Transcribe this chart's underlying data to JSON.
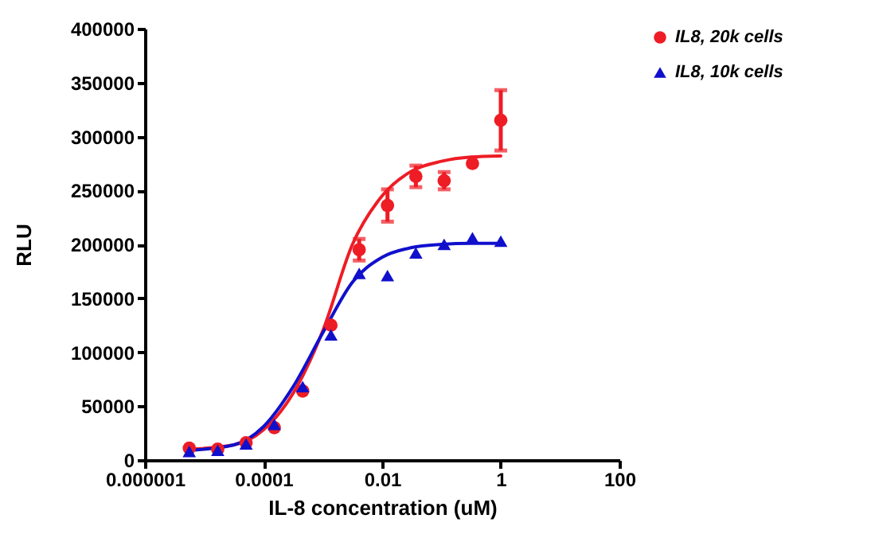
{
  "chart_data": {
    "type": "scatter",
    "xlabel": "IL-8 concentration (uM)",
    "ylabel": "RLU",
    "log": "x",
    "grid": false,
    "legend": "right",
    "xlim": [
      1e-06,
      100
    ],
    "xticks": [
      {
        "value": 1e-06,
        "label": "0.000001"
      },
      0.0001,
      0.01,
      1,
      100
    ],
    "ylim": [
      0,
      400000
    ],
    "yticks": [
      0,
      50000,
      100000,
      150000,
      200000,
      250000,
      300000,
      350000,
      400000
    ],
    "x": [
      5.6e-06,
      1.69e-05,
      5.08e-05,
      0.000152,
      0.000457,
      0.00137,
      0.0041,
      0.0123,
      0.037,
      0.111,
      0.333,
      1
    ],
    "series": [
      {
        "name": "IL8, 20k cells",
        "color": "#ee1c25",
        "marker": "circle",
        "values": [
          11000,
          10000,
          16000,
          30000,
          64000,
          125000,
          195000,
          236000,
          263000,
          259000,
          275000,
          315000
        ],
        "errors": [
          null,
          null,
          null,
          null,
          null,
          null,
          10000,
          15000,
          10000,
          8000,
          null,
          28000
        ]
      },
      {
        "name": "IL8, 10k cells",
        "color": "#1010cc",
        "marker": "triangle",
        "values": [
          8000,
          9000,
          15000,
          33000,
          68000,
          116000,
          173000,
          171000,
          192000,
          200000,
          206000,
          203000
        ]
      },
      {
        "type": "line",
        "color": "#ee1c25",
        "x": [
          5.6e-06,
          3.16e-05,
          0.0001,
          0.000316,
          0.001,
          0.00316,
          0.01,
          0.0316,
          0.1,
          0.316,
          1
        ],
        "values": [
          10000,
          14000,
          28000,
          62000,
          120000,
          200000,
          245000,
          268000,
          277000,
          281000,
          282000
        ]
      },
      {
        "type": "line",
        "color": "#1010cc",
        "x": [
          5.6e-06,
          3.16e-05,
          0.0001,
          0.000316,
          0.001,
          0.00316,
          0.01,
          0.0316,
          0.1,
          0.316,
          1
        ],
        "values": [
          9000,
          14000,
          31000,
          68000,
          118000,
          165000,
          188000,
          197000,
          200000,
          201000,
          201000
        ]
      }
    ]
  }
}
